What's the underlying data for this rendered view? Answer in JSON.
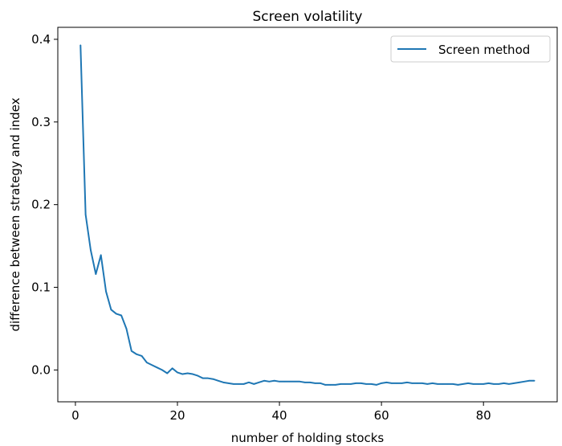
{
  "chart_data": {
    "type": "line",
    "title": "Screen volatility",
    "xlabel": "number of holding stocks",
    "ylabel": "difference between strategy and index",
    "xlim": [
      -3.45,
      94.45
    ],
    "ylim": [
      -0.0385,
      0.4145
    ],
    "xticks": [
      0,
      20,
      40,
      60,
      80
    ],
    "xtick_labels": [
      "0",
      "20",
      "40",
      "60",
      "80"
    ],
    "yticks": [
      0.0,
      0.1,
      0.2,
      0.3,
      0.4
    ],
    "ytick_labels": [
      "0.0",
      "0.1",
      "0.2",
      "0.3",
      "0.4"
    ],
    "grid": false,
    "legend_position": "upper right",
    "series": [
      {
        "name": "Screen method",
        "color": "#1f77b4",
        "x": [
          1,
          2,
          3,
          4,
          5,
          6,
          7,
          8,
          9,
          10,
          11,
          12,
          13,
          14,
          15,
          16,
          17,
          18,
          19,
          20,
          21,
          22,
          23,
          24,
          25,
          26,
          27,
          28,
          29,
          30,
          31,
          32,
          33,
          34,
          35,
          36,
          37,
          38,
          39,
          40,
          41,
          42,
          43,
          44,
          45,
          46,
          47,
          48,
          49,
          50,
          51,
          52,
          53,
          54,
          55,
          56,
          57,
          58,
          59,
          60,
          61,
          62,
          63,
          64,
          65,
          66,
          67,
          68,
          69,
          70,
          71,
          72,
          73,
          74,
          75,
          76,
          77,
          78,
          79,
          80,
          81,
          82,
          83,
          84,
          85,
          86,
          87,
          88,
          89,
          90
        ],
        "values": [
          0.393,
          0.188,
          0.145,
          0.116,
          0.139,
          0.095,
          0.073,
          0.068,
          0.066,
          0.05,
          0.023,
          0.019,
          0.017,
          0.009,
          0.006,
          0.003,
          0.0,
          -0.004,
          0.002,
          -0.003,
          -0.005,
          -0.004,
          -0.005,
          -0.007,
          -0.01,
          -0.01,
          -0.011,
          -0.013,
          -0.015,
          -0.016,
          -0.017,
          -0.017,
          -0.017,
          -0.015,
          -0.017,
          -0.015,
          -0.013,
          -0.014,
          -0.013,
          -0.014,
          -0.014,
          -0.014,
          -0.014,
          -0.014,
          -0.015,
          -0.015,
          -0.016,
          -0.016,
          -0.018,
          -0.018,
          -0.018,
          -0.017,
          -0.017,
          -0.017,
          -0.016,
          -0.016,
          -0.017,
          -0.017,
          -0.018,
          -0.016,
          -0.015,
          -0.016,
          -0.016,
          -0.016,
          -0.015,
          -0.016,
          -0.016,
          -0.016,
          -0.017,
          -0.016,
          -0.017,
          -0.017,
          -0.017,
          -0.017,
          -0.018,
          -0.017,
          -0.016,
          -0.017,
          -0.017,
          -0.017,
          -0.016,
          -0.017,
          -0.017,
          -0.016,
          -0.017,
          -0.016,
          -0.015,
          -0.014,
          -0.013,
          -0.013
        ]
      }
    ]
  }
}
